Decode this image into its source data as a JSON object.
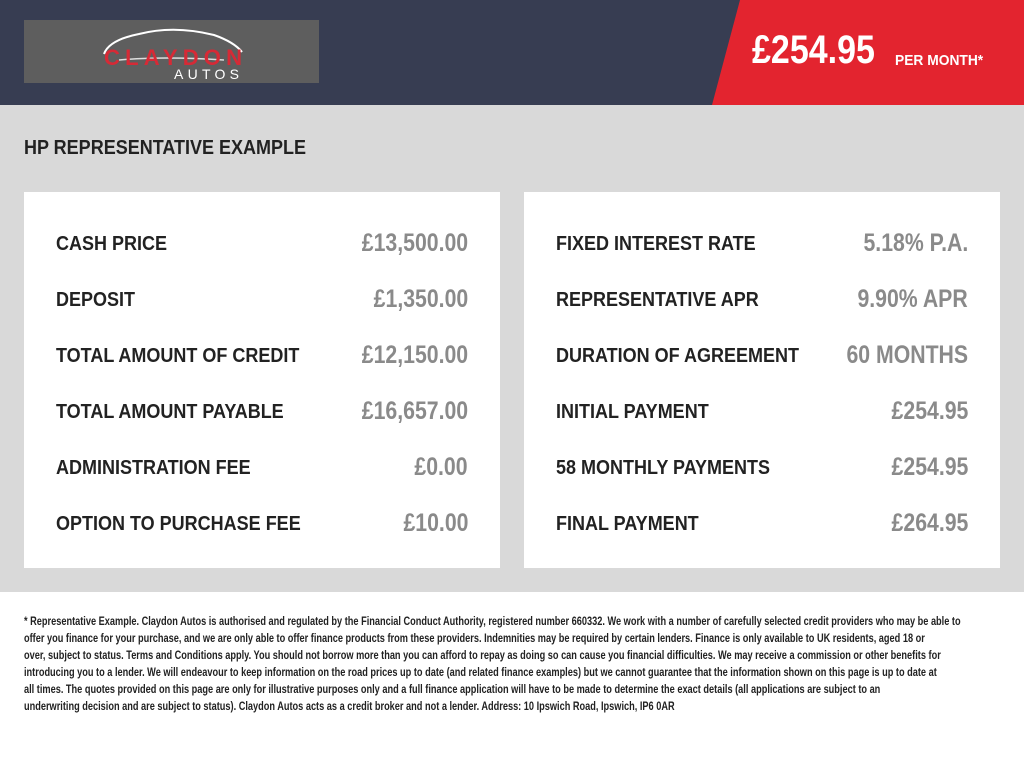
{
  "logo": {
    "text_top": "CLAYDON",
    "text_bottom": "AUTOS"
  },
  "header": {
    "price": "£254.95",
    "per_month": "PER MONTH*"
  },
  "colors": {
    "header_bg": "#373d52",
    "accent": "#e3242f",
    "panel_bg": "#d9d9d9"
  },
  "title": "HP REPRESENTATIVE EXAMPLE",
  "left": [
    {
      "label": "CASH PRICE",
      "value": "£13,500.00"
    },
    {
      "label": "DEPOSIT",
      "value": "£1,350.00"
    },
    {
      "label": "TOTAL AMOUNT OF CREDIT",
      "value": "£12,150.00"
    },
    {
      "label": "TOTAL AMOUNT PAYABLE",
      "value": "£16,657.00"
    },
    {
      "label": "ADMINISTRATION FEE",
      "value": "£0.00"
    },
    {
      "label": "OPTION TO PURCHASE FEE",
      "value": "£10.00"
    }
  ],
  "right": [
    {
      "label": "FIXED INTEREST RATE",
      "value": "5.18% P.A."
    },
    {
      "label": "REPRESENTATIVE APR",
      "value": "9.90% APR"
    },
    {
      "label": "DURATION OF AGREEMENT",
      "value": "60 MONTHS"
    },
    {
      "label": "INITIAL PAYMENT",
      "value": "£254.95"
    },
    {
      "label": "58 MONTHLY PAYMENTS",
      "value": "£254.95"
    },
    {
      "label": "FINAL PAYMENT",
      "value": "£264.95"
    }
  ],
  "footer": [
    "* Representative Example. Claydon Autos is authorised and regulated by the Financial Conduct Authority, registered number 660332. We work with a number of carefully selected credit providers who may be able to",
    "offer you finance for your purchase, and we are only able to offer finance products from these providers. Indemnities may be required by certain lenders. Finance is only available to UK residents, aged 18 or",
    "over, subject to status. Terms and Conditions apply. You should not borrow more than you can afford to repay as doing so can cause you financial difficulties. We may receive a commission or other benefits for",
    "introducing you to a lender. We will endeavour to keep information on the road prices up to date (and related finance examples) but we cannot guarantee that the information shown on this page is up to date at",
    "all times. The quotes provided on this page are only for illustrative purposes only and a full finance application will have to be made to determine the exact details (all applications are subject to an",
    "underwriting decision and are subject to status). Claydon Autos acts as a credit broker and not a lender. Address: 10 Ipswich Road, Ipswich, IP6 0AR"
  ]
}
